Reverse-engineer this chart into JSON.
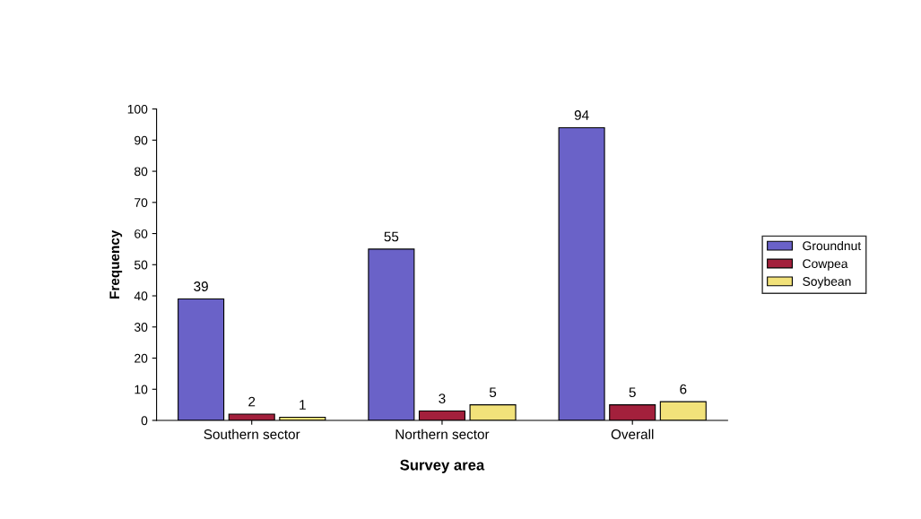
{
  "chart_data": {
    "type": "bar",
    "xlabel": "Survey area",
    "ylabel": "Frequency",
    "categories": [
      "Southern sector",
      "Northern sector",
      "Overall"
    ],
    "series": [
      {
        "name": "Groundnut",
        "color": "#6a62c8",
        "values": [
          39,
          55,
          94
        ]
      },
      {
        "name": "Cowpea",
        "color": "#a3203c",
        "values": [
          2,
          3,
          5
        ]
      },
      {
        "name": "Soybean",
        "color": "#f2e27a",
        "values": [
          1,
          5,
          6
        ]
      }
    ],
    "ylim": [
      0,
      100
    ],
    "yticks": [
      0,
      10,
      20,
      30,
      40,
      50,
      60,
      70,
      80,
      90,
      100
    ],
    "data_labels": true,
    "legend": "right",
    "grid": false
  }
}
